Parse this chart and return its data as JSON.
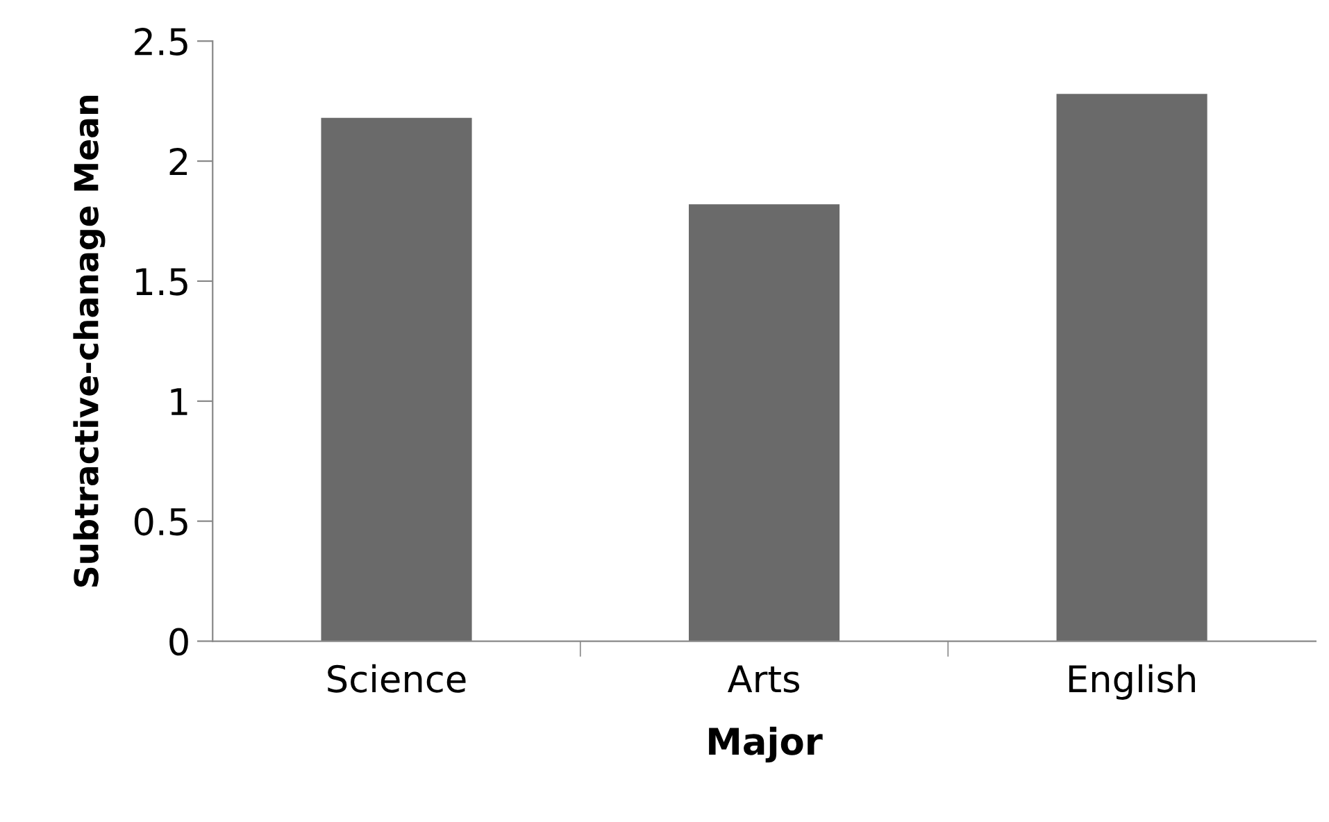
{
  "chart_data": {
    "type": "bar",
    "xlabel": "Major",
    "ylabel": "Subtractive-chanage Mean",
    "categories": [
      "Science",
      "Arts",
      "English"
    ],
    "values": [
      2.18,
      1.82,
      2.28
    ],
    "color": "#6a6a6a",
    "ylim": [
      0,
      2.5
    ],
    "yticks": [
      0,
      0.5,
      1,
      1.5,
      2,
      2.5
    ],
    "grid": false,
    "legend": false
  }
}
